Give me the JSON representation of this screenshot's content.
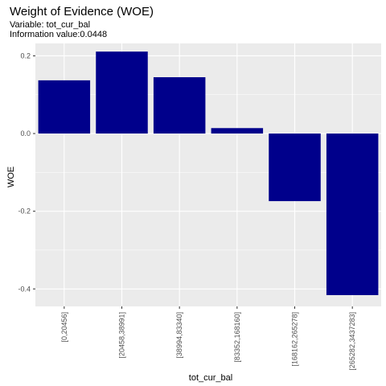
{
  "chart_data": {
    "type": "bar",
    "title": "Weight of Evidence (WOE)",
    "subtitles": [
      "Variable: tot_cur_bal",
      "Information value:0.0448"
    ],
    "xlabel": "tot_cur_bal",
    "ylabel": "WOE",
    "categories": [
      "[0,20456]",
      "[20458,38991]",
      "[38994,83340]",
      "[83352,168160]",
      "[168162,265278]",
      "[265282,3437283]"
    ],
    "values": [
      0.137,
      0.211,
      0.145,
      0.014,
      -0.174,
      -0.416
    ],
    "ylim": [
      -0.445,
      0.232
    ],
    "yticks": [
      0.2,
      0.0,
      -0.2,
      -0.4
    ],
    "ytick_labels": [
      "0.2",
      "0.0",
      "-0.2",
      "-0.4"
    ],
    "bar_color": "#00008B",
    "panel_background": "#EBEBEB",
    "grid_color": "#FFFFFF",
    "grid": true,
    "legend": "none"
  }
}
